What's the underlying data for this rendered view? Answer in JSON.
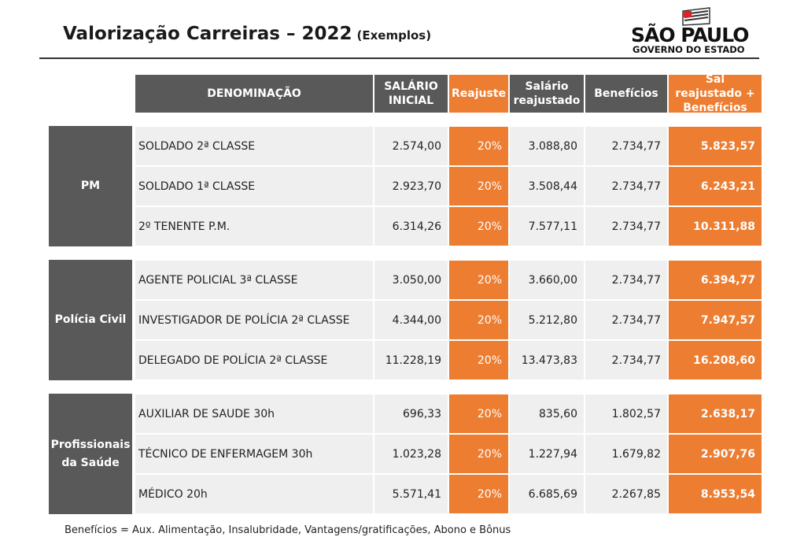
{
  "header": {
    "title": "Valorização Carreiras – 2022",
    "subtitle": "(Exemplos)"
  },
  "logo": {
    "line1": "SÃO PAULO",
    "line2": "GOVERNO DO ESTADO"
  },
  "table": {
    "columns": [
      "DENOMINAÇÃO",
      "SALÁRIO INICIAL",
      "Reajuste",
      "Salário reajustado",
      "Benefícios",
      "Sal reajustado + Benefícios"
    ],
    "groups": [
      {
        "label": "PM",
        "rows": [
          [
            "SOLDADO  2ª CLASSE",
            "2.574,00",
            "20%",
            "3.088,80",
            "2.734,77",
            "5.823,57"
          ],
          [
            "SOLDADO  1ª CLASSE",
            "2.923,70",
            "20%",
            "3.508,44",
            "2.734,77",
            "6.243,21"
          ],
          [
            "2º TENENTE P.M.",
            "6.314,26",
            "20%",
            "7.577,11",
            "2.734,77",
            "10.311,88"
          ]
        ]
      },
      {
        "label": "Polícia Civil",
        "rows": [
          [
            "AGENTE POLICIAL  3ª CLASSE",
            "3.050,00",
            "20%",
            "3.660,00",
            "2.734,77",
            "6.394,77"
          ],
          [
            "INVESTIGADOR DE POLÍCIA 2ª CLASSE",
            "4.344,00",
            "20%",
            "5.212,80",
            "2.734,77",
            "7.947,57"
          ],
          [
            "DELEGADO DE POLÍCIA 2ª CLASSE",
            "11.228,19",
            "20%",
            "13.473,83",
            "2.734,77",
            "16.208,60"
          ]
        ]
      },
      {
        "label": "Profissionais da Saúde",
        "rows": [
          [
            "AUXILIAR DE SAUDE  30h",
            "696,33",
            "20%",
            "835,60",
            "1.802,57",
            "2.638,17"
          ],
          [
            "TÉCNICO DE ENFERMAGEM  30h",
            "1.023,28",
            "20%",
            "1.227,94",
            "1.679,82",
            "2.907,76"
          ],
          [
            "MÉDICO  20h",
            "5.571,41",
            "20%",
            "6.685,69",
            "2.267,85",
            "8.953,54"
          ]
        ]
      }
    ]
  },
  "footnote": "Benefícios = Aux. Alimentação, Insalubridade, Vantagens/gratificações, Abono e  Bônus"
}
